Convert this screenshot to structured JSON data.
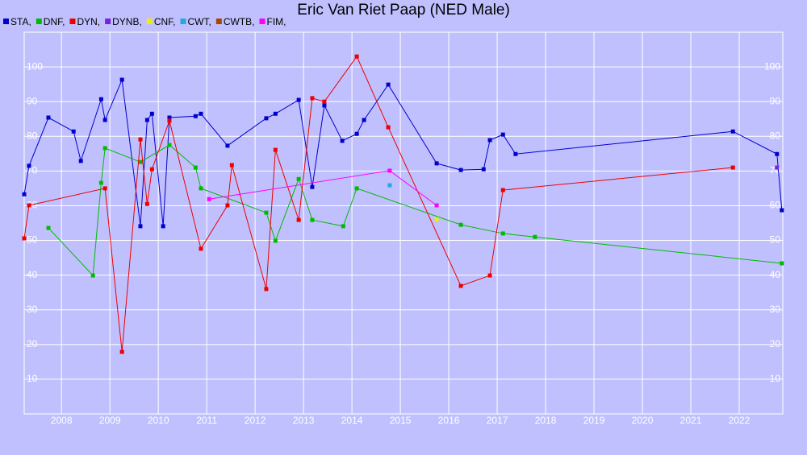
{
  "chart_data": {
    "type": "line",
    "title": "Eric Van Riet Paap (NED Male)",
    "xlim": [
      2007.23,
      2022.9
    ],
    "xticks": [
      2008,
      2009,
      2010,
      2011,
      2012,
      2013,
      2014,
      2015,
      2016,
      2017,
      2018,
      2019,
      2020,
      2021,
      2022
    ],
    "ylim": [
      0,
      110
    ],
    "yticks": [
      10,
      20,
      30,
      40,
      50,
      60,
      70,
      80,
      90,
      100
    ],
    "grid": true,
    "legend": "top-left",
    "series": [
      {
        "name": "STA,",
        "color": "#0000cc",
        "x": [
          2007.23,
          2007.33,
          2007.73,
          2008.25,
          2008.4,
          2008.82,
          2008.9,
          2009.25,
          2009.63,
          2009.77,
          2009.87,
          2010.1,
          2010.23,
          2010.77,
          2010.88,
          2011.43,
          2012.23,
          2012.42,
          2012.9,
          2013.18,
          2013.43,
          2013.8,
          2014.1,
          2014.25,
          2014.75,
          2015.75,
          2016.25,
          2016.72,
          2016.85,
          2017.12,
          2017.38,
          2021.87,
          2022.78,
          2022.88
        ],
        "values": [
          63.3,
          71.5,
          85.4,
          81.4,
          72.9,
          90.7,
          84.7,
          96.3,
          54.1,
          84.7,
          86.5,
          54.1,
          85.4,
          85.8,
          86.5,
          77.3,
          85.2,
          86.5,
          90.5,
          65.4,
          88.9,
          78.7,
          80.7,
          84.7,
          94.9,
          72.2,
          70.3,
          70.5,
          78.9,
          80.5,
          74.9,
          81.4,
          74.9,
          58.7
        ]
      },
      {
        "name": "DNF,",
        "color": "#00bb00",
        "x": [
          2007.73,
          2008.65,
          2008.82,
          2008.9,
          2009.63,
          2010.23,
          2010.77,
          2010.88,
          2012.23,
          2012.42,
          2012.9,
          2013.18,
          2013.82,
          2014.1,
          2016.25,
          2017.12,
          2017.78,
          2022.88
        ],
        "values": [
          53.6,
          39.9,
          66.6,
          76.6,
          72.6,
          77.5,
          71.0,
          65.0,
          58.0,
          49.9,
          67.7,
          55.9,
          54.1,
          65.0,
          54.5,
          52.0,
          51.0,
          43.4
        ]
      },
      {
        "name": "DYN,",
        "color": "#ee0000",
        "x": [
          2007.23,
          2007.33,
          2008.9,
          2009.25,
          2009.63,
          2009.77,
          2009.87,
          2010.23,
          2010.88,
          2011.43,
          2011.52,
          2012.23,
          2012.42,
          2012.9,
          2013.18,
          2013.43,
          2014.1,
          2014.75,
          2016.25,
          2016.85,
          2017.12,
          2021.87
        ],
        "values": [
          50.6,
          60.1,
          65.0,
          17.9,
          79.1,
          60.5,
          70.5,
          84.5,
          47.6,
          60.1,
          71.7,
          36.0,
          76.1,
          55.9,
          91.0,
          90.0,
          103.0,
          82.6,
          36.9,
          39.9,
          64.5,
          71.0
        ]
      },
      {
        "name": "DYNB,",
        "color": "#7722dd",
        "x": [
          2022.78
        ],
        "values": [
          71.0
        ]
      },
      {
        "name": "CNF,",
        "color": "#eeee00",
        "x": [
          2015.75
        ],
        "values": [
          56.1
        ]
      },
      {
        "name": "CWT,",
        "color": "#22aadd",
        "x": [
          2014.78
        ],
        "values": [
          65.9
        ]
      },
      {
        "name": "CWTB,",
        "color": "#aa4400",
        "x": [],
        "values": []
      },
      {
        "name": "FIM,",
        "color": "#ff00ff",
        "x": [
          2011.05,
          2014.78,
          2015.75
        ],
        "values": [
          61.9,
          70.1,
          60.1
        ]
      }
    ]
  }
}
